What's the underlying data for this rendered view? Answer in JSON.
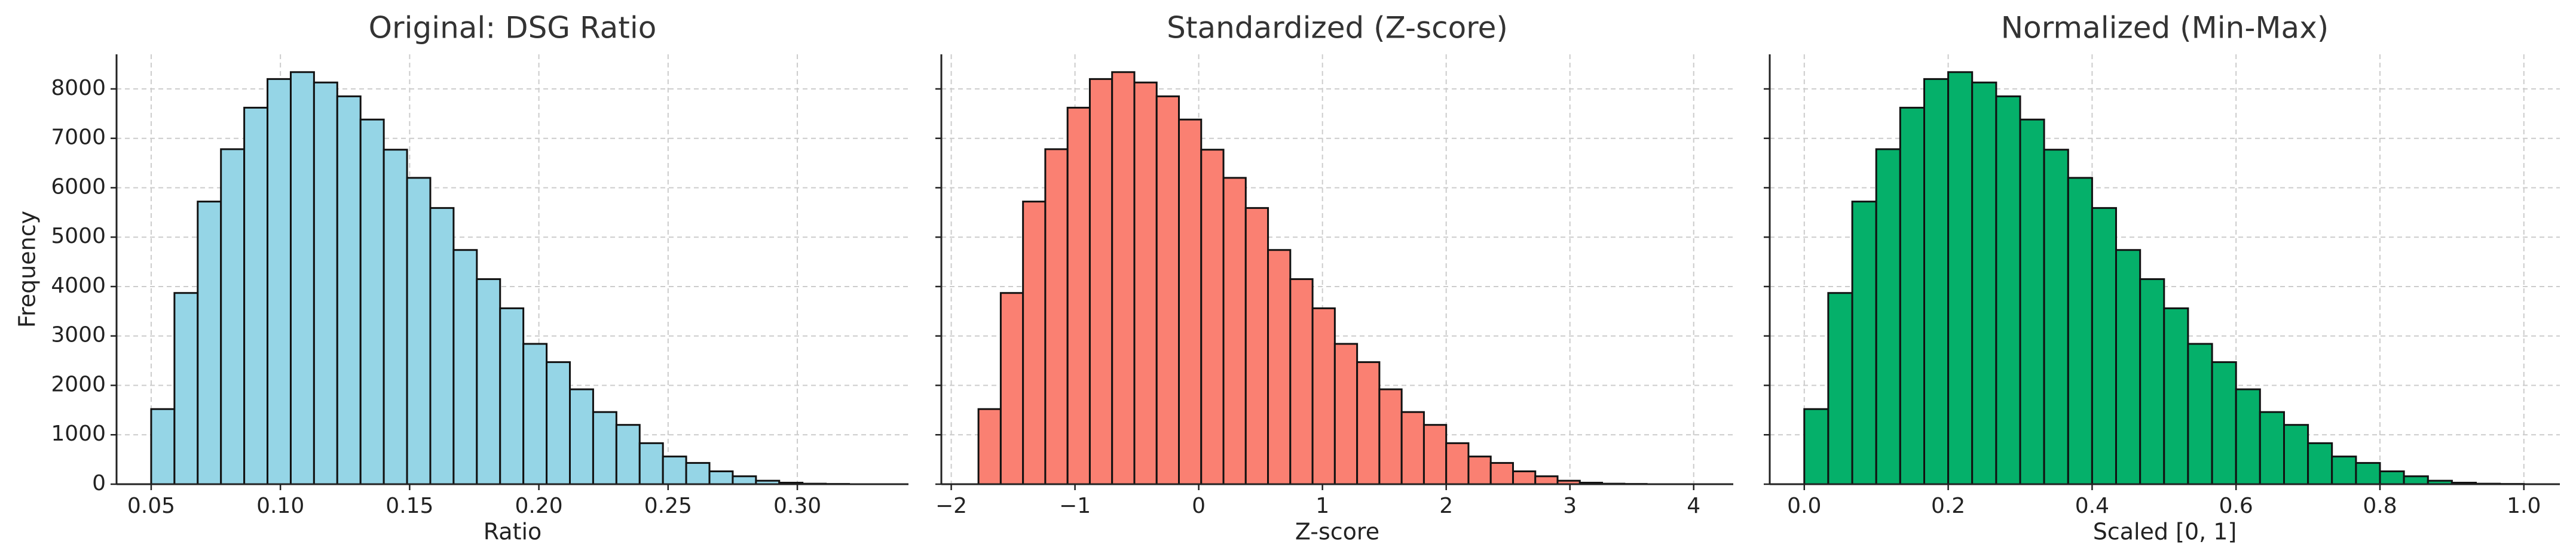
{
  "chart_data": [
    {
      "type": "histogram",
      "title": "Original: DSG Ratio",
      "xlabel": "Ratio",
      "ylabel": "Frequency",
      "color": "#95d5e6",
      "bins": [
        0.05,
        0.059,
        0.068,
        0.077,
        0.086,
        0.095,
        0.104,
        0.113,
        0.122,
        0.131,
        0.14,
        0.149,
        0.158,
        0.167,
        0.176,
        0.185,
        0.194,
        0.203,
        0.212,
        0.221,
        0.23,
        0.239,
        0.248,
        0.257,
        0.266,
        0.275,
        0.284,
        0.293,
        0.302,
        0.311,
        0.32
      ],
      "values": [
        1520,
        3870,
        5720,
        6780,
        7620,
        8200,
        8340,
        8130,
        7850,
        7380,
        6770,
        6200,
        5590,
        4740,
        4150,
        3560,
        2840,
        2470,
        1920,
        1460,
        1200,
        830,
        560,
        430,
        260,
        160,
        70,
        30,
        10,
        5
      ],
      "xlim": [
        0.0366,
        0.343
      ],
      "xticks": [
        0.05,
        {
          "value": 0.1,
          "label": "0.10"
        },
        0.15,
        {
          "value": 0.2,
          "label": "0.20"
        },
        0.25,
        {
          "value": 0.3,
          "label": "0.30"
        }
      ],
      "ylim": [
        0,
        8700
      ],
      "yticks": [
        0,
        1000,
        2000,
        3000,
        4000,
        5000,
        6000,
        7000,
        8000
      ],
      "grid": true
    },
    {
      "type": "histogram",
      "title": "Standardized (Z-score)",
      "xlabel": "Z-score",
      "color": "#fa8072",
      "sharey": true,
      "bins": [
        -1.78,
        -1.6,
        -1.42,
        -1.24,
        -1.06,
        -0.88,
        -0.7,
        -0.52,
        -0.34,
        -0.16,
        0.02,
        0.2,
        0.38,
        0.56,
        0.74,
        0.92,
        1.1,
        1.28,
        1.46,
        1.64,
        1.82,
        2.0,
        2.18,
        2.36,
        2.54,
        2.72,
        2.9,
        3.08,
        3.26,
        3.44,
        3.62
      ],
      "values": [
        1520,
        3870,
        5720,
        6780,
        7620,
        8200,
        8340,
        8130,
        7850,
        7380,
        6770,
        6200,
        5590,
        4740,
        4150,
        3560,
        2840,
        2470,
        1920,
        1460,
        1200,
        830,
        560,
        430,
        260,
        160,
        70,
        30,
        10,
        5
      ],
      "xlim": [
        -2.08,
        4.32
      ],
      "xticks": [
        {
          "value": -2,
          "label": "−2"
        },
        {
          "value": -1,
          "label": "−1"
        },
        0,
        1,
        2,
        3,
        4
      ],
      "grid": true
    },
    {
      "type": "histogram",
      "title": "Normalized (Min-Max)",
      "xlabel": "Scaled [0, 1]",
      "color": "#05b06a",
      "sharey": true,
      "bins": [
        0,
        0.0333,
        0.0667,
        0.1,
        0.1333,
        0.1667,
        0.2,
        0.2333,
        0.2667,
        0.3,
        0.3333,
        0.3667,
        0.4,
        0.4333,
        0.4667,
        0.5,
        0.5333,
        0.5667,
        0.6,
        0.6333,
        0.6667,
        0.7,
        0.7333,
        0.7667,
        0.8,
        0.8333,
        0.8667,
        0.9,
        0.9333,
        0.9667,
        1.0
      ],
      "values": [
        1520,
        3870,
        5720,
        6780,
        7620,
        8200,
        8340,
        8130,
        7850,
        7380,
        6770,
        6200,
        5590,
        4740,
        4150,
        3560,
        2840,
        2470,
        1920,
        1460,
        1200,
        830,
        560,
        430,
        260,
        160,
        70,
        30,
        10,
        5
      ],
      "xlim": [
        -0.048,
        1.05
      ],
      "xticks": [
        {
          "value": 0,
          "label": "0.0"
        },
        0.2,
        0.4,
        0.6,
        0.8,
        {
          "value": 1,
          "label": "1.0"
        }
      ],
      "grid": true
    }
  ]
}
